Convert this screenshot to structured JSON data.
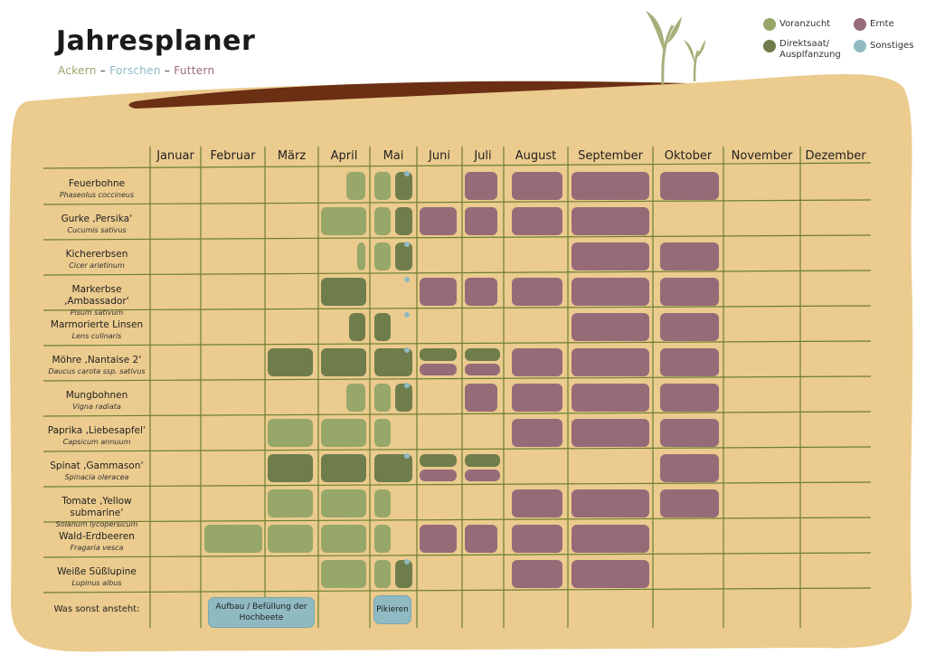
{
  "title": "Jahresplaner",
  "subtitle": {
    "part1": "Ackern",
    "sep1": " – ",
    "part2": "Forschen",
    "sep2": " – ",
    "part3": "Futtern"
  },
  "legend": {
    "preculture": "Voranzucht",
    "direct_sowing": "Direktsaat/ Ausplfanzung",
    "harvest": "Ernte",
    "other": "Sonstiges"
  },
  "colors": {
    "background": "#ebcb8e",
    "soil": "#6b2f14",
    "grid": "#6c7f31",
    "preculture": "#97a76a",
    "direct_sowing": "#6f7d4c",
    "harvest": "#966b78",
    "other": "#8fbac2",
    "sprout": "#a4b07a"
  },
  "months": [
    "Januar",
    "Februar",
    "März",
    "April",
    "Mai",
    "Juni",
    "Juli",
    "August",
    "September",
    "Oktober",
    "November",
    "Dezember"
  ],
  "crops": [
    {
      "name": "Feuerbohne",
      "latin": "Phaseolus coccineus"
    },
    {
      "name": "Gurke ‚Persika‘",
      "latin": "Cucumis sativus"
    },
    {
      "name": "Kichererbsen",
      "latin": "Cicer arietinum"
    },
    {
      "name": "Markerbse ‚Ambassador‘",
      "latin": "Pisum sativum"
    },
    {
      "name": "Marmorierte Linsen",
      "latin": "Lens culinaris"
    },
    {
      "name": "Möhre ‚Nantaise 2‘",
      "latin": "Daucus carota ssp. sativus"
    },
    {
      "name": "Mungbohnen",
      "latin": "Vigna radiata"
    },
    {
      "name": "Paprika ‚Liebesapfel‘",
      "latin": "Capsicum annuum"
    },
    {
      "name": "Spinat ‚Gammason‘",
      "latin": "Spinacia oleracea"
    },
    {
      "name": "Tomate ‚Yellow submarine‘",
      "latin": "Solanum lycopersicum"
    },
    {
      "name": "Wald-Erdbeeren",
      "latin": "Fragaria vesca"
    },
    {
      "name": "Weiße Süßlupine",
      "latin": "Lupinus albus"
    }
  ],
  "other_row": {
    "label": "Was sonst ansteht:",
    "notes": [
      {
        "text": "Aufbau / Befüllung der Hochbeete"
      },
      {
        "text": "Pikieren"
      }
    ]
  }
}
